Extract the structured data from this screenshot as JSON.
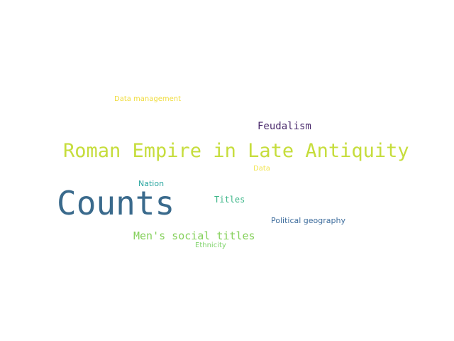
{
  "words": [
    {
      "key": "counts",
      "text": "Counts",
      "color": "#3a6a8c"
    },
    {
      "key": "roman",
      "text": "Roman Empire in Late Antiquity",
      "color": "#c6dd3c"
    },
    {
      "key": "feudalism",
      "text": "Feudalism",
      "color": "#4a2a6c"
    },
    {
      "key": "mens",
      "text": "Men's social titles",
      "color": "#86d15c"
    },
    {
      "key": "titles",
      "text": "Titles",
      "color": "#3fb78a"
    },
    {
      "key": "political",
      "text": "Political geography",
      "color": "#3d6c9c"
    },
    {
      "key": "nation",
      "text": "Nation",
      "color": "#2aa6a0"
    },
    {
      "key": "datamgmt",
      "text": "Data management",
      "color": "#f0dc3c"
    },
    {
      "key": "data",
      "text": "Data",
      "color": "#f2e44c"
    },
    {
      "key": "ethnicity",
      "text": "Ethnicity",
      "color": "#7fd36a"
    }
  ]
}
